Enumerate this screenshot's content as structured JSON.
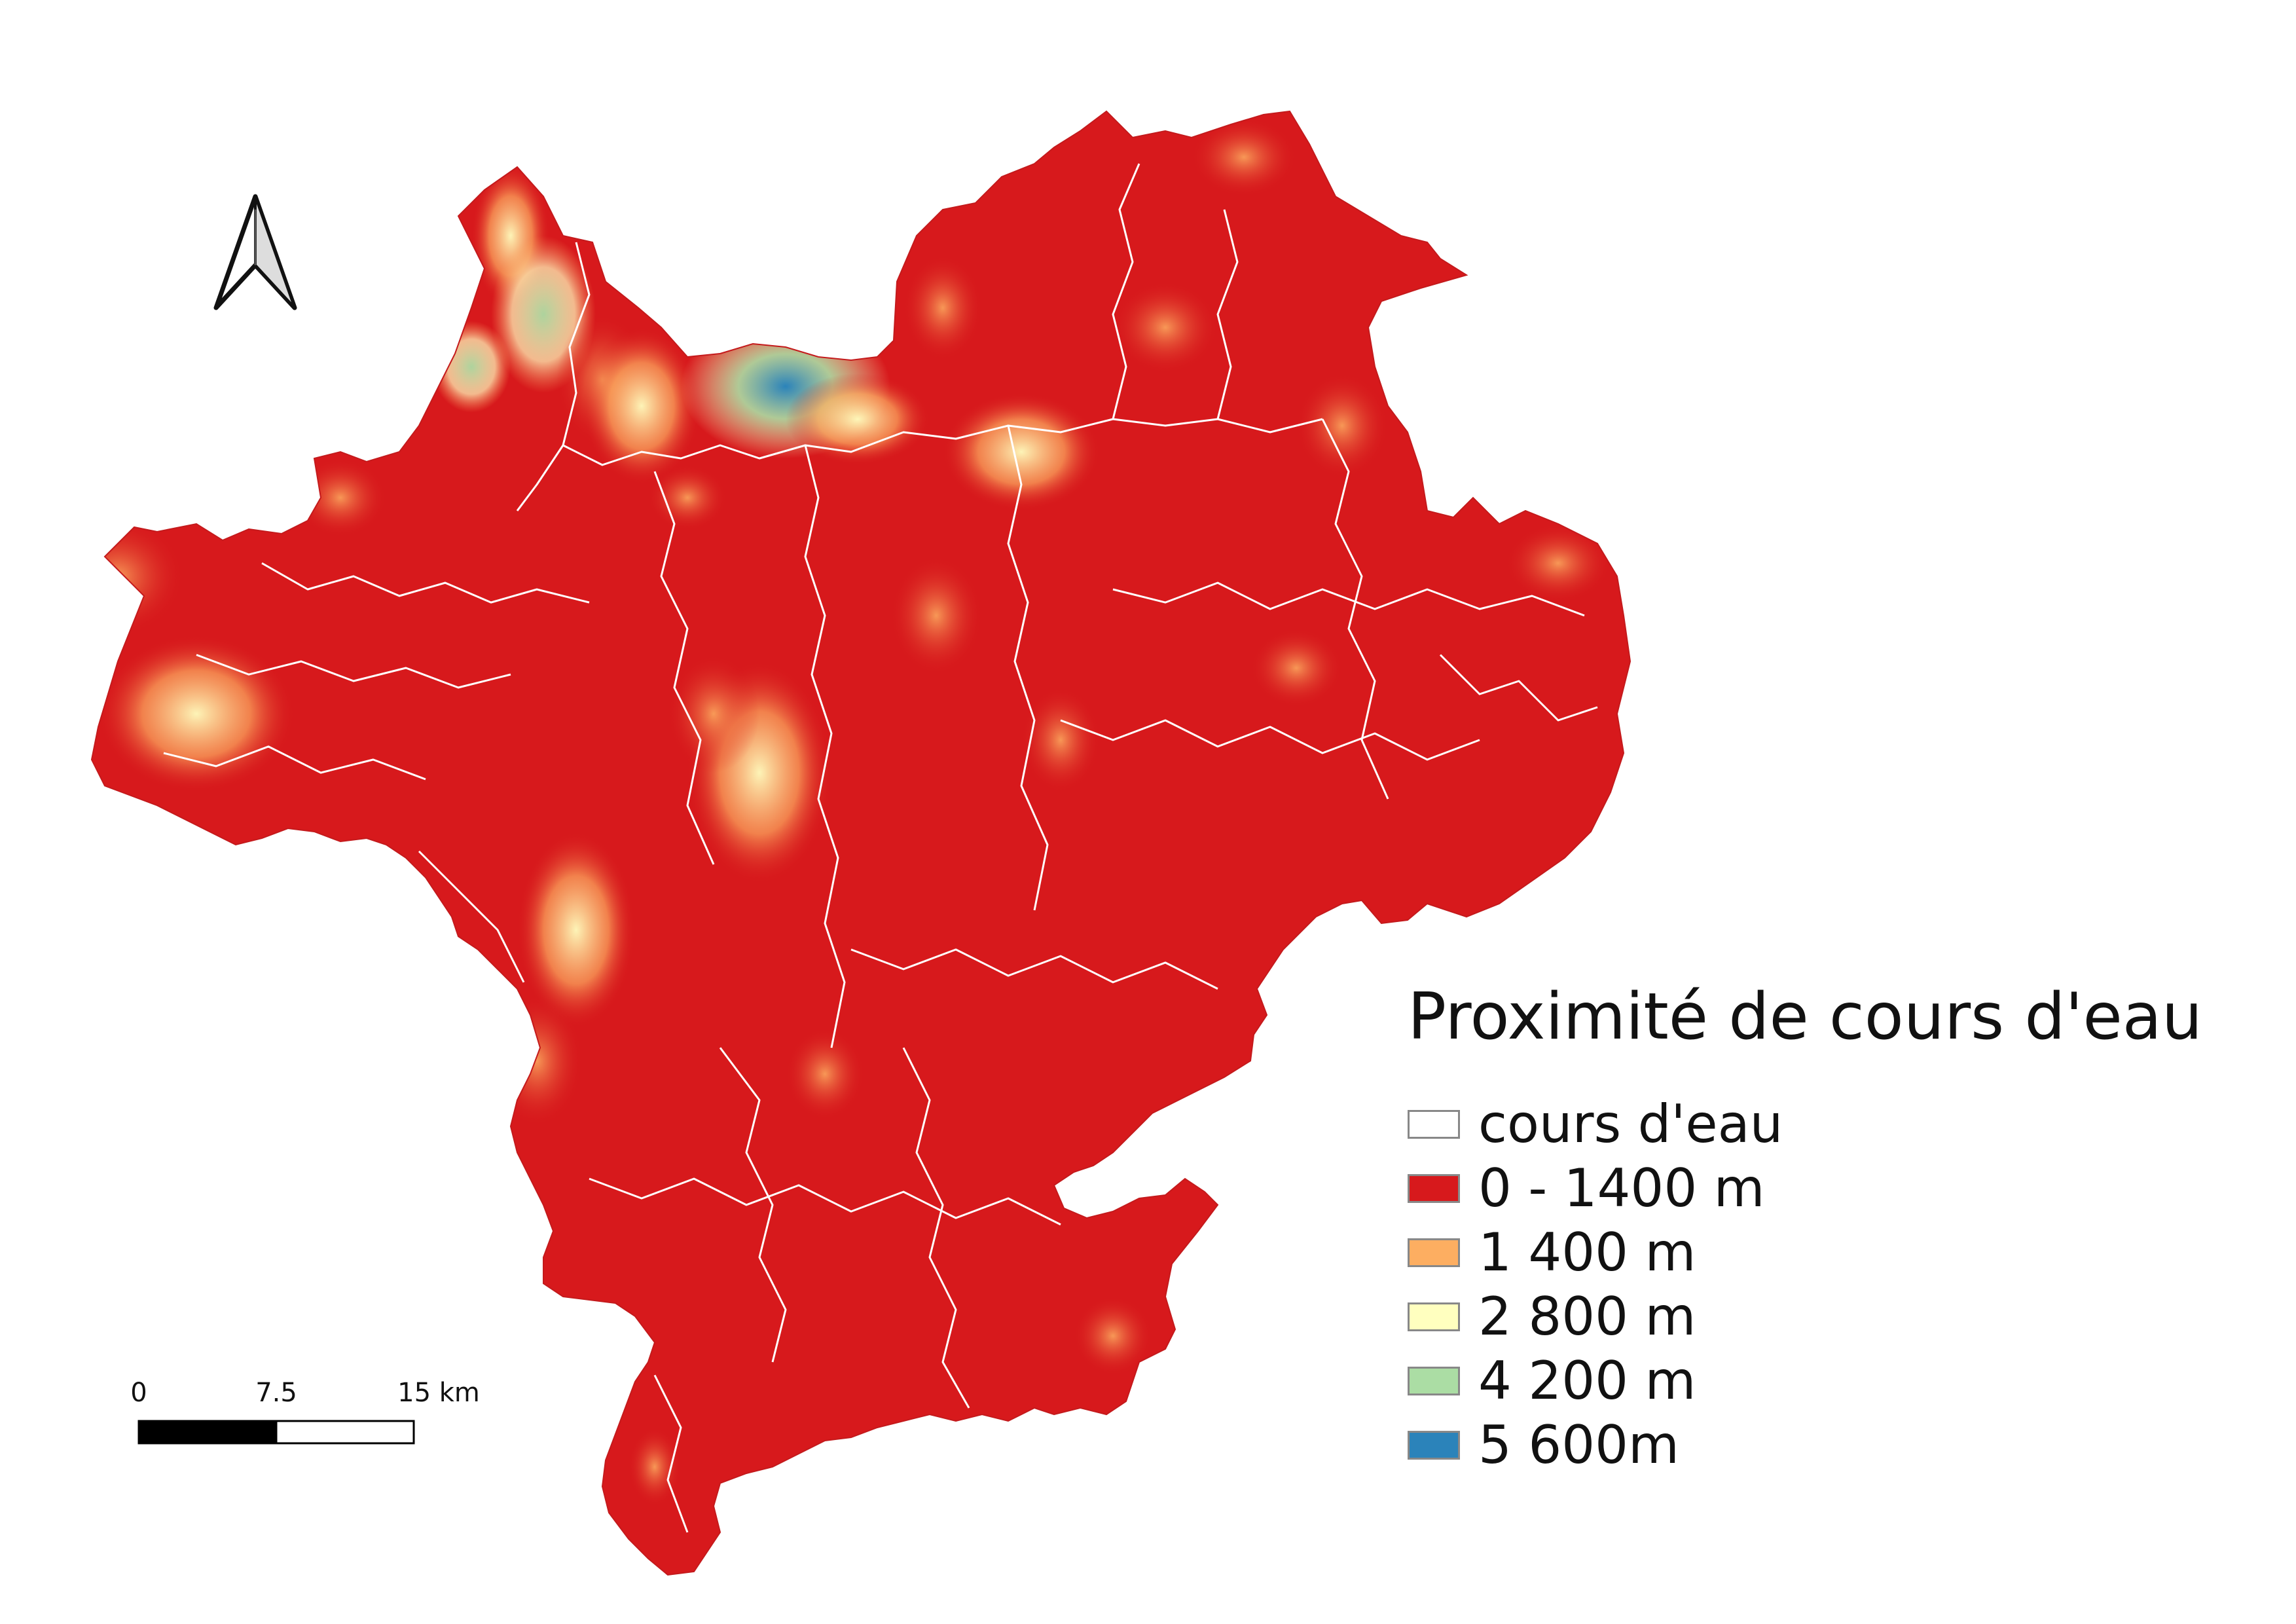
{
  "legend": {
    "title": "Proximité de cours d'eau",
    "items": [
      {
        "label": "cours d'eau",
        "color": "#ffffff"
      },
      {
        "label": "0 - 1400 m",
        "color": "#d7191c"
      },
      {
        "label": "1 400 m",
        "color": "#fdae61"
      },
      {
        "label": "2 800 m",
        "color": "#ffffbf"
      },
      {
        "label": "4 200 m",
        "color": "#abdda4"
      },
      {
        "label": "5 600m",
        "color": "#2b83ba"
      }
    ]
  },
  "scale_bar": {
    "labels": [
      "0",
      "7.5",
      "15 km"
    ]
  },
  "colors": {
    "near": "#d7191c",
    "mid": "#fdae61",
    "far": "#ffffbf",
    "farther": "#abdda4",
    "farthest": "#2b83ba",
    "stream": "#ffffff"
  },
  "north_arrow_icon": "north-arrow-icon"
}
